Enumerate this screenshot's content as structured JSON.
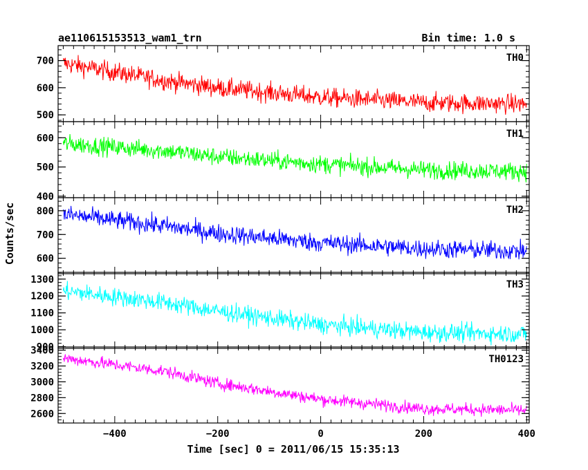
{
  "header": {
    "title": "ae110615153513_wam1_trn",
    "bin_time": "Bin time: 1.0 s"
  },
  "chart_data": {
    "type": "line",
    "xlabel": "Time [sec] 0 = 2011/06/15 15:35:13",
    "ylabel": "Counts/sec",
    "xlim": [
      -510,
      405
    ],
    "x_ticks": [
      -400,
      -200,
      0,
      200,
      400
    ],
    "x_tick_labels": [
      "−400",
      "−200",
      "0",
      "200",
      "400"
    ],
    "x_start": -500,
    "x_end": 400,
    "x_step": 1,
    "grid": false,
    "panels": [
      {
        "label": "TH0",
        "color": "#ff0000",
        "ylim": [
          475,
          755
        ],
        "y_ticks": [
          500,
          600,
          700
        ],
        "y_tick_labels": [
          "500",
          "600",
          "700"
        ],
        "trend": [
          [
            -500,
            690
          ],
          [
            -300,
            625
          ],
          [
            -200,
            600
          ],
          [
            0,
            565
          ],
          [
            200,
            545
          ],
          [
            400,
            540
          ]
        ],
        "noise": 25
      },
      {
        "label": "TH1",
        "color": "#00ff00",
        "ylim": [
          395,
          655
        ],
        "y_ticks": [
          400,
          500,
          600
        ],
        "y_tick_labels": [
          "400",
          "500",
          "600"
        ],
        "trend": [
          [
            -500,
            580
          ],
          [
            -300,
            555
          ],
          [
            -200,
            535
          ],
          [
            0,
            510
          ],
          [
            200,
            490
          ],
          [
            400,
            485
          ]
        ],
        "noise": 22
      },
      {
        "label": "TH2",
        "color": "#0000ff",
        "ylim": [
          535,
          855
        ],
        "y_ticks": [
          600,
          700,
          800
        ],
        "y_tick_labels": [
          "600",
          "700",
          "800"
        ],
        "trend": [
          [
            -500,
            785
          ],
          [
            -300,
            735
          ],
          [
            -200,
            705
          ],
          [
            0,
            665
          ],
          [
            200,
            640
          ],
          [
            400,
            630
          ]
        ],
        "noise": 28
      },
      {
        "label": "TH3",
        "color": "#00ffff",
        "ylim": [
          890,
          1340
        ],
        "y_ticks": [
          900,
          1000,
          1100,
          1200,
          1300
        ],
        "y_tick_labels": [
          "900",
          "1000",
          "1100",
          "1200",
          "1300"
        ],
        "trend": [
          [
            -500,
            1230
          ],
          [
            -300,
            1160
          ],
          [
            -200,
            1110
          ],
          [
            0,
            1030
          ],
          [
            200,
            985
          ],
          [
            400,
            975
          ]
        ],
        "noise": 38
      },
      {
        "label": "TH0123",
        "color": "#ff00ff",
        "ylim": [
          2480,
          3440
        ],
        "y_ticks": [
          2600,
          2800,
          3000,
          3200,
          3400
        ],
        "y_tick_labels": [
          "2600",
          "2800",
          "3000",
          "3200",
          "3400"
        ],
        "trend": [
          [
            -500,
            3300
          ],
          [
            -300,
            3130
          ],
          [
            -200,
            2980
          ],
          [
            0,
            2780
          ],
          [
            200,
            2660
          ],
          [
            400,
            2640
          ]
        ],
        "noise": 55
      }
    ]
  }
}
